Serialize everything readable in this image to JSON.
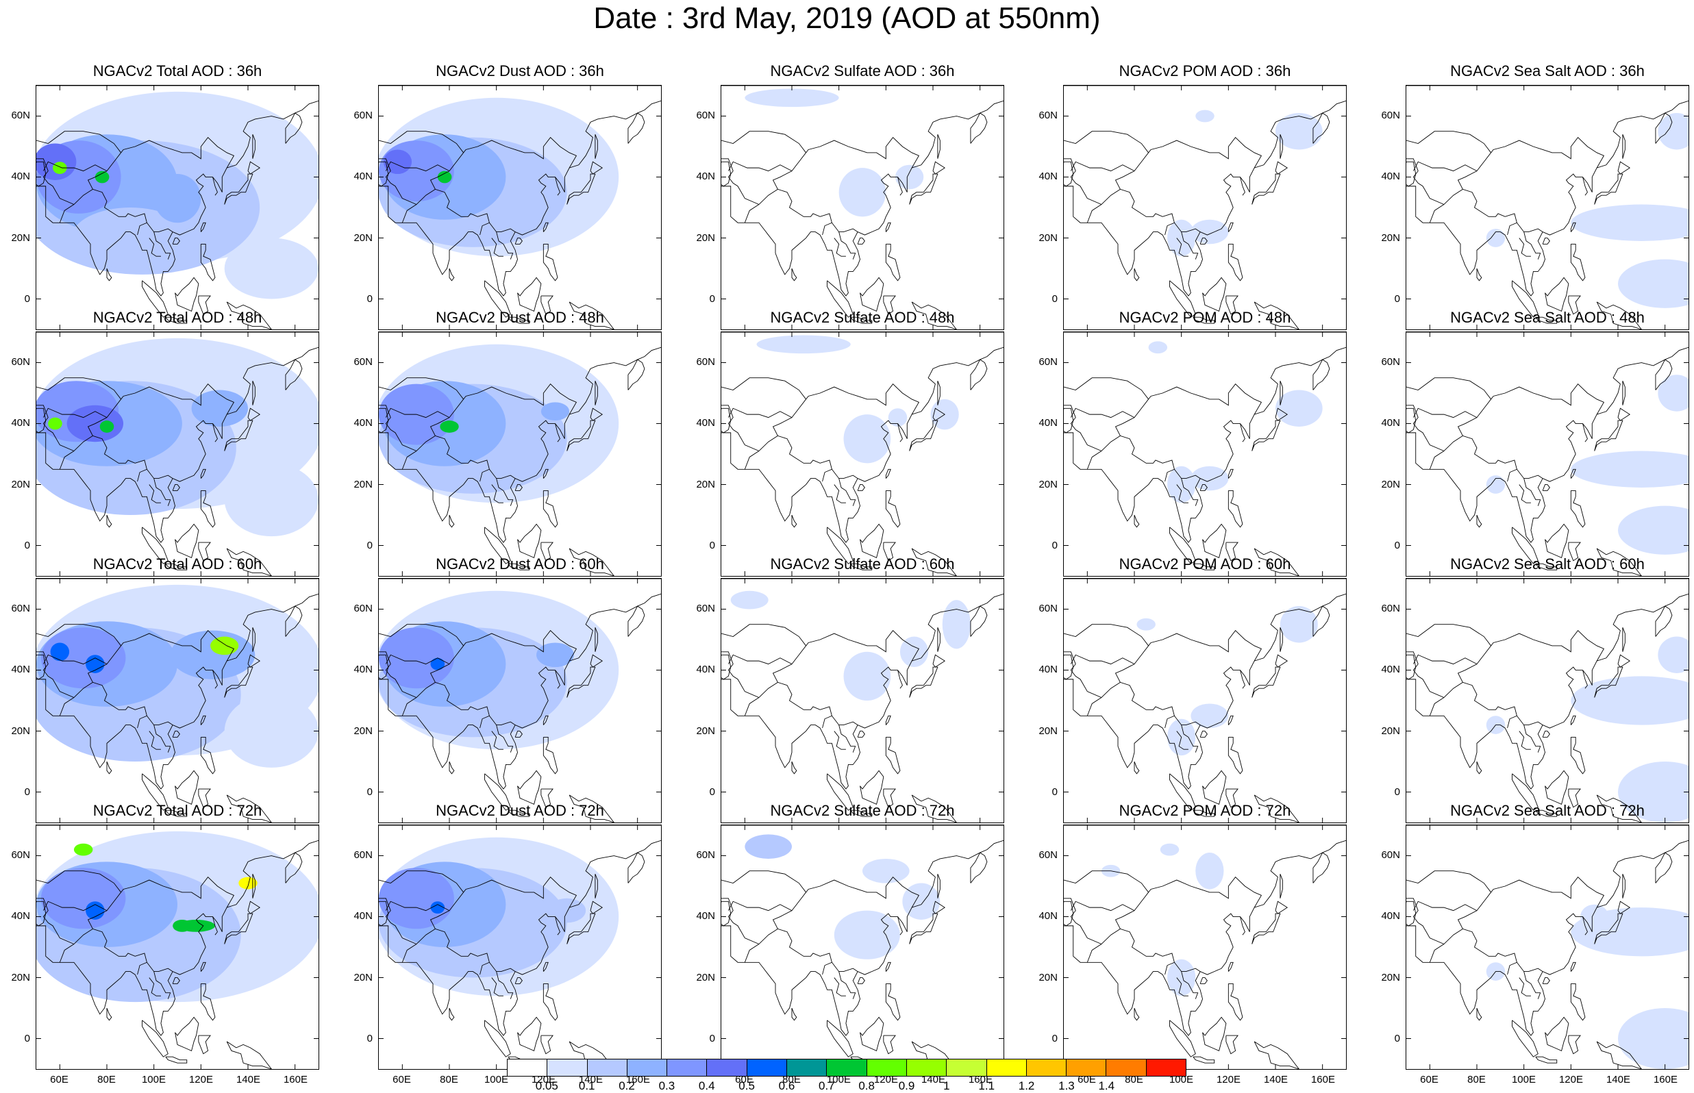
{
  "title": "Date : 3rd May, 2019 (AOD at 550nm)",
  "panels": [
    {
      "title": "NGACv2 Total AOD : 36h",
      "field": "total",
      "lead": 36
    },
    {
      "title": "NGACv2 Dust AOD : 36h",
      "field": "dust",
      "lead": 36
    },
    {
      "title": "NGACv2 Sulfate AOD : 36h",
      "field": "sulfate",
      "lead": 36
    },
    {
      "title": "NGACv2 POM AOD : 36h",
      "field": "pom",
      "lead": 36
    },
    {
      "title": "NGACv2 Sea Salt AOD : 36h",
      "field": "seasalt",
      "lead": 36
    },
    {
      "title": "NGACv2 Total AOD : 48h",
      "field": "total",
      "lead": 48
    },
    {
      "title": "NGACv2 Dust AOD : 48h",
      "field": "dust",
      "lead": 48
    },
    {
      "title": "NGACv2 Sulfate AOD : 48h",
      "field": "sulfate",
      "lead": 48
    },
    {
      "title": "NGACv2 POM AOD : 48h",
      "field": "pom",
      "lead": 48
    },
    {
      "title": "NGACv2 Sea Salt AOD : 48h",
      "field": "seasalt",
      "lead": 48
    },
    {
      "title": "NGACv2 Total AOD : 60h",
      "field": "total",
      "lead": 60
    },
    {
      "title": "NGACv2 Dust AOD : 60h",
      "field": "dust",
      "lead": 60
    },
    {
      "title": "NGACv2 Sulfate AOD : 60h",
      "field": "sulfate",
      "lead": 60
    },
    {
      "title": "NGACv2 POM AOD : 60h",
      "field": "pom",
      "lead": 60
    },
    {
      "title": "NGACv2 Sea Salt AOD : 60h",
      "field": "seasalt",
      "lead": 60
    },
    {
      "title": "NGACv2 Total AOD : 72h",
      "field": "total",
      "lead": 72
    },
    {
      "title": "NGACv2 Dust AOD : 72h",
      "field": "dust",
      "lead": 72
    },
    {
      "title": "NGACv2 Sulfate AOD : 72h",
      "field": "sulfate",
      "lead": 72
    },
    {
      "title": "NGACv2 POM AOD : 72h",
      "field": "pom",
      "lead": 72
    },
    {
      "title": "NGACv2 Sea Salt  AOD : 72h",
      "field": "seasalt",
      "lead": 72
    }
  ],
  "map_extent": {
    "lon_min": 50,
    "lon_max": 170,
    "lat_min": -10,
    "lat_max": 70
  },
  "lon_ticks": [
    {
      "value": 60,
      "label": "60E"
    },
    {
      "value": 80,
      "label": "80E"
    },
    {
      "value": 100,
      "label": "100E"
    },
    {
      "value": 120,
      "label": "120E"
    },
    {
      "value": 140,
      "label": "140E"
    },
    {
      "value": 160,
      "label": "160E"
    }
  ],
  "lat_ticks": [
    {
      "value": 60,
      "label": "60N"
    },
    {
      "value": 40,
      "label": "40N"
    },
    {
      "value": 20,
      "label": "20N"
    },
    {
      "value": 0,
      "label": "0"
    }
  ],
  "colorbar": {
    "labels": [
      "0.05",
      "0.1",
      "0.2",
      "0.3",
      "0.4",
      "0.5",
      "0.6",
      "0.7",
      "0.8",
      "0.9",
      "1",
      "1.1",
      "1.2",
      "1.3",
      "1.4"
    ],
    "colors": [
      "#ffffff",
      "#d6e2ff",
      "#b5c9ff",
      "#8eb2ff",
      "#7f96ff",
      "#6370f8",
      "#0063ff",
      "#009696",
      "#00c633",
      "#63ff00",
      "#96ff00",
      "#c6ff33",
      "#ffff00",
      "#ffc600",
      "#ffa000",
      "#ff7c00",
      "#ff1900"
    ]
  }
}
